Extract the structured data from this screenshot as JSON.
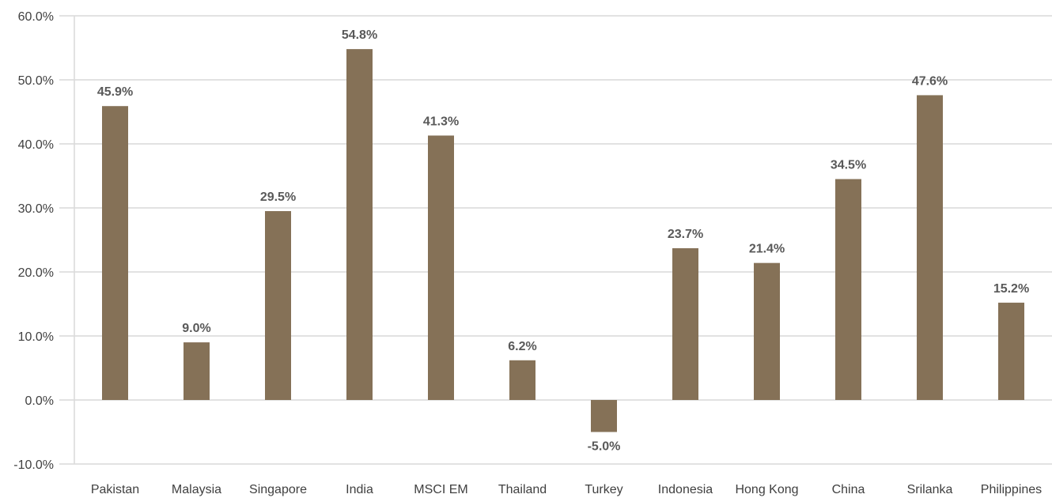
{
  "chart_data": {
    "type": "bar",
    "categories": [
      "Pakistan",
      "Malaysia",
      "Singapore",
      "India",
      "MSCI EM",
      "Thailand",
      "Turkey",
      "Indonesia",
      "Hong Kong",
      "China",
      "Srilanka",
      "Philippines"
    ],
    "values": [
      45.9,
      9.0,
      29.5,
      54.8,
      41.3,
      6.2,
      -5.0,
      23.7,
      21.4,
      34.5,
      47.6,
      15.2
    ],
    "data_labels": [
      "45.9%",
      "9.0%",
      "29.5%",
      "54.8%",
      "41.3%",
      "6.2%",
      "-5.0%",
      "23.7%",
      "21.4%",
      "34.5%",
      "47.6%",
      "15.2%"
    ],
    "y_ticks": [
      "-10.0%",
      "0.0%",
      "10.0%",
      "20.0%",
      "30.0%",
      "40.0%",
      "50.0%",
      "60.0%"
    ],
    "ylim": [
      -10,
      60
    ],
    "grid": true,
    "bar_color": "#857157",
    "title": "",
    "xlabel": "",
    "ylabel": ""
  }
}
